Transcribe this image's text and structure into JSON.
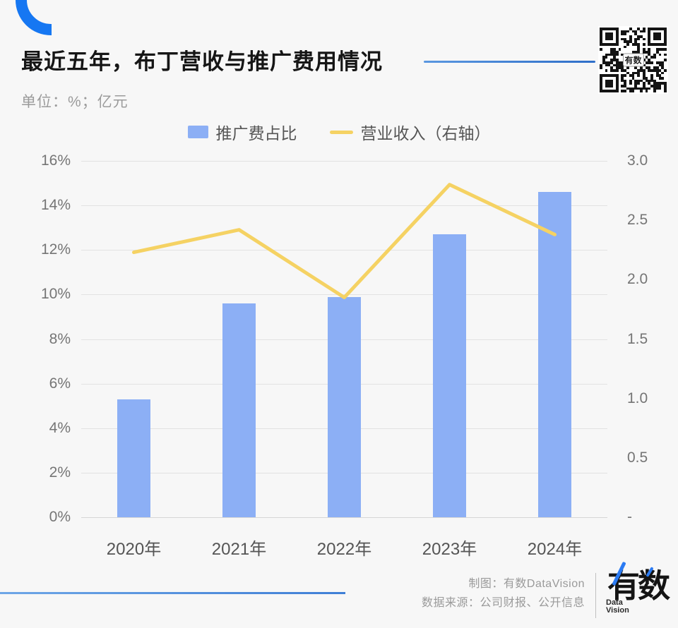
{
  "page": {
    "background": "#f7f7f7",
    "accent_blue": "#1677f2"
  },
  "header": {
    "title": "最近五年，布丁营收与推广费用情况",
    "subtitle": "单位：%；亿元",
    "underline_color": "#3c7ed8",
    "qr_label": "有数"
  },
  "legend": [
    {
      "label": "推广费占比",
      "swatch": "bar",
      "color": "#8caff5"
    },
    {
      "label": "营业收入（右轴）",
      "swatch": "line",
      "color": "#f5d263"
    }
  ],
  "chart_data": {
    "type": "bar",
    "combo": "bar+line",
    "title": "最近五年，布丁营收与推广费用情况",
    "categories": [
      "2020年",
      "2021年",
      "2022年",
      "2023年",
      "2024年"
    ],
    "series": [
      {
        "name": "推广费占比",
        "type": "bar",
        "axis": "left",
        "color": "#8caff5",
        "values": [
          5.3,
          9.6,
          9.9,
          12.7,
          14.6
        ]
      },
      {
        "name": "营业收入（右轴）",
        "type": "line",
        "axis": "right",
        "color": "#f5d263",
        "values": [
          2.23,
          2.42,
          1.85,
          2.8,
          2.38
        ]
      }
    ],
    "left_axis": {
      "min": 0,
      "max": 16,
      "step": 2,
      "suffix": "%",
      "tick_labels": [
        "0%",
        "2%",
        "4%",
        "6%",
        "8%",
        "10%",
        "12%",
        "14%",
        "16%"
      ]
    },
    "right_axis": {
      "min": 0,
      "max": 3,
      "step": 0.5,
      "tick_labels": [
        "-",
        "0.5",
        "1.0",
        "1.5",
        "2.0",
        "2.5",
        "3.0"
      ]
    },
    "grid": true,
    "legend_position": "top",
    "xlabel": "",
    "ylabel_left": "%",
    "ylabel_right": "亿元"
  },
  "footer": {
    "credit": "制图：有数DataVision",
    "source": "数据来源：公司财报、公开信息",
    "logo_text": "有数",
    "logo_sub1": "Data",
    "logo_sub2": "Vision"
  }
}
